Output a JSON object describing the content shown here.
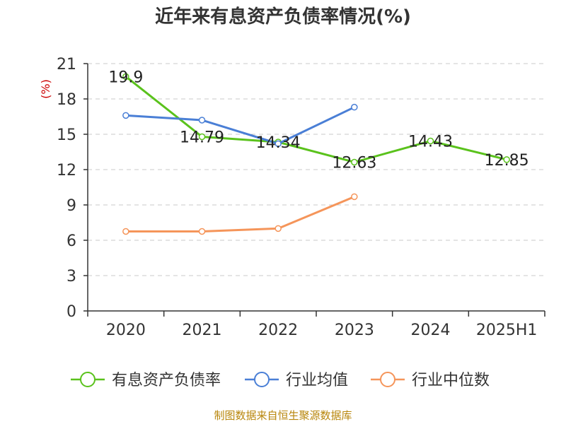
{
  "chart_data": {
    "type": "line",
    "title": "近年来有息资产负债率情况(%)",
    "ylabel": "(%)",
    "xlabel": "",
    "ylim": [
      0,
      21
    ],
    "yticks": [
      0,
      3,
      6,
      9,
      12,
      15,
      18,
      21
    ],
    "categories": [
      "2020",
      "2021",
      "2022",
      "2023",
      "2024",
      "2025H1"
    ],
    "grid": true,
    "legend_position": "bottom",
    "series": [
      {
        "name": "有息资产负债率",
        "color": "#5ac21c",
        "values": [
          19.9,
          14.79,
          14.34,
          12.63,
          14.43,
          12.85
        ],
        "labels": [
          "19.9",
          "14.79",
          "14.34",
          "12.63",
          "14.43",
          "12.85"
        ]
      },
      {
        "name": "行业均值",
        "color": "#4a7fd6",
        "values": [
          16.6,
          16.2,
          14.2,
          17.3,
          null,
          null
        ]
      },
      {
        "name": "行业中位数",
        "color": "#f5955a",
        "values": [
          6.75,
          6.75,
          7.0,
          9.7,
          null,
          null
        ]
      }
    ],
    "source": "制图数据来自恒生聚源数据库"
  }
}
